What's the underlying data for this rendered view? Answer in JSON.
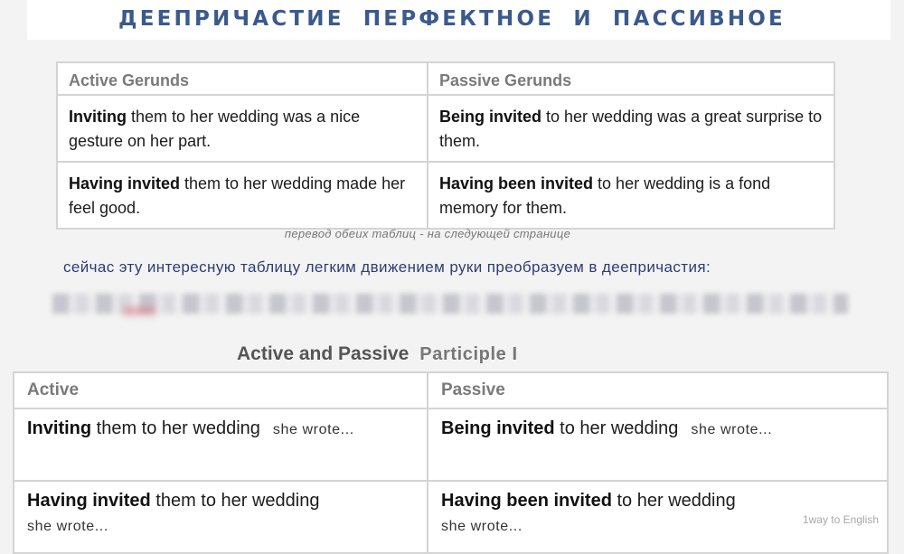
{
  "title": "ДЕЕПРИЧАСТИЕ ПЕРФЕКТНОЕ И ПАССИВНОЕ",
  "gerunds": {
    "headers": {
      "active": "Active Gerunds",
      "passive": "Passive Gerunds"
    },
    "rows": [
      {
        "active_bold": "Inviting",
        "active_rest": " them to her wedding was a nice gesture on her part.",
        "passive_bold": "Being invited",
        "passive_rest": " to her wedding was a great surprise to them."
      },
      {
        "active_bold": "Having invited",
        "active_rest": " them to her wedding made her feel good.",
        "passive_bold": "Having been invited",
        "passive_rest": " to her wedding is a fond memory for them."
      }
    ]
  },
  "note": "перевод обеих таблиц - на следующей странице",
  "caption": "сейчас эту интересную таблицу легким движением руки преобразуем в деепричастия:",
  "participle": {
    "heading": "Active and Passive",
    "heading_sub": "Participle I",
    "headers": {
      "active": "Active",
      "passive": "Passive"
    },
    "rows": [
      {
        "active_bold": "Inviting",
        "active_rest": " them to her wedding",
        "active_tail": "she  wrote...",
        "passive_bold": "Being invited",
        "passive_rest": " to her wedding",
        "passive_tail": "she  wrote..."
      },
      {
        "active_bold": "Having invited",
        "active_rest": " them to her wedding",
        "active_tail": "she  wrote...",
        "passive_bold": "Having been invited",
        "passive_rest": " to her wedding",
        "passive_tail": "she  wrote..."
      }
    ]
  },
  "watermark": "1way to English"
}
